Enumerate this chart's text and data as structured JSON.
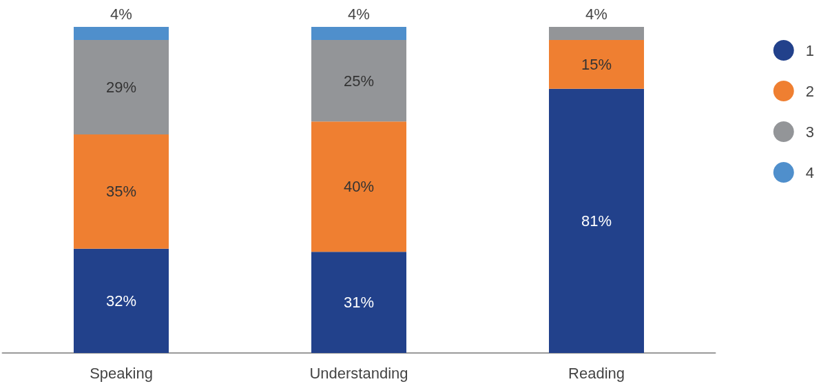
{
  "chart_data": {
    "type": "bar",
    "stacked": true,
    "legend": "top right",
    "categories": [
      "Speaking",
      "Understanding",
      "Reading"
    ],
    "series": [
      {
        "name": "1",
        "color": "#22418b",
        "values": [
          32,
          31,
          81
        ],
        "value_labels": [
          "32%",
          "31%",
          "81%"
        ]
      },
      {
        "name": "2",
        "color": "#ef7f31",
        "values": [
          35,
          40,
          15
        ],
        "value_labels": [
          "35%",
          "40%",
          "15%"
        ]
      },
      {
        "name": "3",
        "color": "#939598",
        "values": [
          29,
          25,
          4
        ],
        "value_labels": [
          "29%",
          "25%",
          "4%"
        ]
      },
      {
        "name": "4",
        "color": "#4f8fcc",
        "values": [
          4,
          4,
          null
        ],
        "value_labels": [
          "4%",
          "4%",
          null
        ]
      }
    ]
  }
}
